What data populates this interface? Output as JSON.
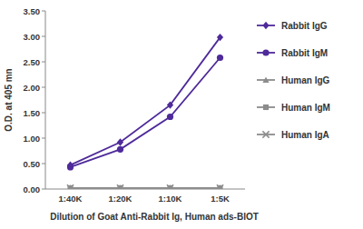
{
  "chart_data": {
    "type": "line",
    "x_label": "Dilution of Goat Anti-Rabbit Ig, Human ads-BIOT",
    "y_label": "O.D. at 405 mn",
    "categories": [
      "1:40K",
      "1:20K",
      "1:10K",
      "1:5K"
    ],
    "series": [
      {
        "name": "Rabbit IgG",
        "color": "#4e2a9a",
        "marker": "diamond",
        "values": [
          0.47,
          0.92,
          1.65,
          2.98
        ]
      },
      {
        "name": "Rabbit IgM",
        "color": "#4e2a9a",
        "marker": "circle",
        "values": [
          0.43,
          0.78,
          1.42,
          2.58
        ]
      },
      {
        "name": "Human IgG",
        "color": "#8c8c8c",
        "marker": "triangle",
        "values": [
          0.02,
          0.02,
          0.02,
          0.02
        ]
      },
      {
        "name": "Human IgM",
        "color": "#8c8c8c",
        "marker": "square",
        "values": [
          0.02,
          0.02,
          0.02,
          0.02
        ]
      },
      {
        "name": "Human IgA",
        "color": "#8c8c8c",
        "marker": "x",
        "values": [
          0.02,
          0.02,
          0.02,
          0.02
        ]
      }
    ],
    "ylim": [
      0,
      3.5
    ],
    "yticks": [
      {
        "value": 0,
        "label": "0.00"
      },
      {
        "value": 0.5,
        "label": "0.50"
      },
      {
        "value": 1,
        "label": "1.00"
      },
      {
        "value": 1.5,
        "label": "1.50"
      },
      {
        "value": 2,
        "label": "2.00"
      },
      {
        "value": 2.5,
        "label": "2.50"
      },
      {
        "value": 3,
        "label": "3.00"
      },
      {
        "value": 3.5,
        "label": "3.50"
      }
    ],
    "grid": false,
    "legend": "right"
  }
}
